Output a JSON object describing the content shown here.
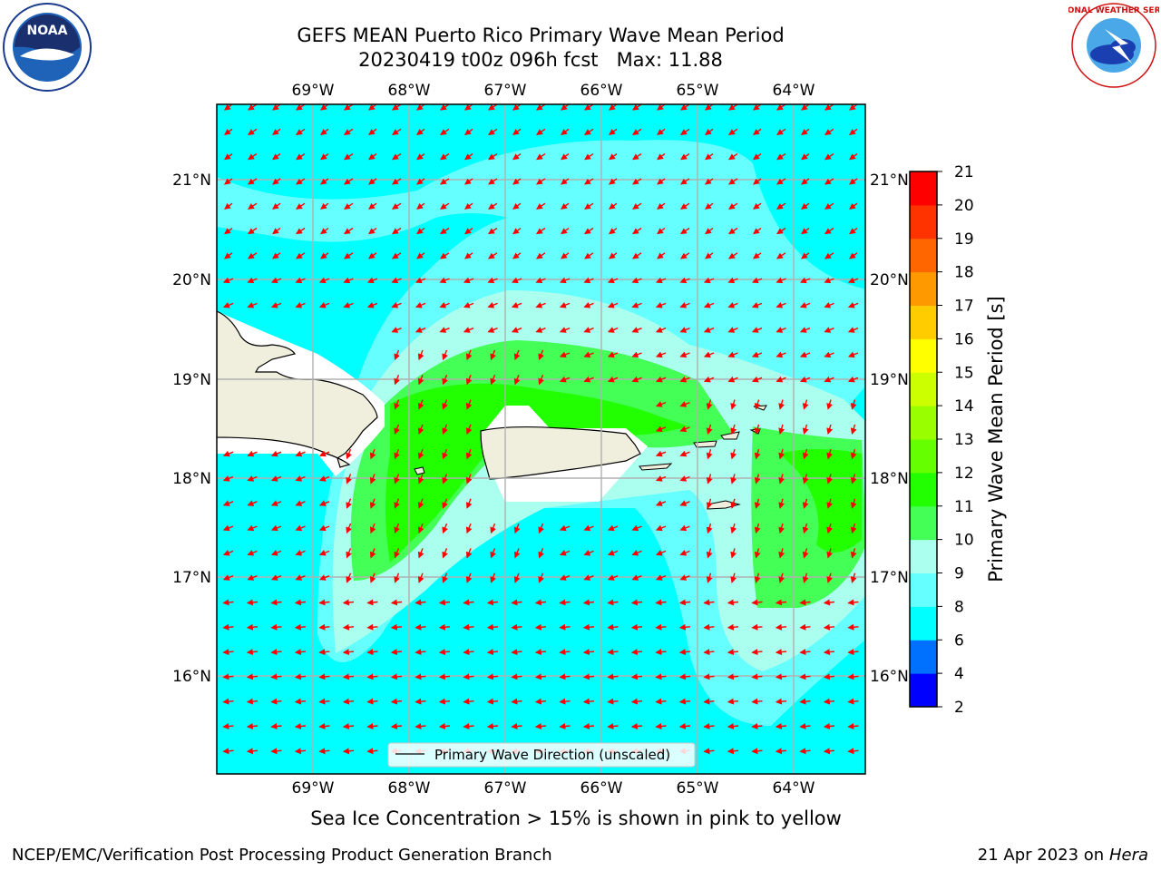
{
  "header": {
    "title_line1": "GEFS MEAN Puerto Rico Primary Wave Mean Period",
    "title_line2": "20230419 t00z 096h fcst   Max: 11.88"
  },
  "map": {
    "lon_labels": [
      "69°W",
      "68°W",
      "67°W",
      "66°W",
      "65°W",
      "64°W"
    ],
    "lat_labels": [
      "21°N",
      "20°N",
      "19°N",
      "18°N",
      "17°N",
      "16°N"
    ],
    "legend_label": "Primary Wave Direction (unscaled)",
    "arrow_color": "#ff0000",
    "land_color": "#f0eedc",
    "ocean_base_color": "#00ffff"
  },
  "colorbar": {
    "label": "Primary Wave Mean Period [s]",
    "ticks": [
      "2",
      "4",
      "6",
      "8",
      "9",
      "10",
      "11",
      "12",
      "13",
      "14",
      "15",
      "16",
      "17",
      "18",
      "19",
      "20",
      "21"
    ],
    "colors": [
      "#0000ff",
      "#0070ff",
      "#00ffff",
      "#66ffff",
      "#aaffee",
      "#44ff55",
      "#22ff00",
      "#66ff00",
      "#99ff00",
      "#ccff00",
      "#ffff00",
      "#ffcc00",
      "#ff9900",
      "#ff6600",
      "#ff3300",
      "#ff0000"
    ]
  },
  "footer": {
    "ice_note": "Sea Ice Concentration > 15% is shown in pink to yellow",
    "branch": "NCEP/EMC/Verification Post Processing Product Generation Branch",
    "date": "21 Apr 2023 on ",
    "host": "Hera"
  },
  "logos": {
    "noaa_text": "NOAA",
    "nws_text": "NATIONAL WEATHER SERVICE"
  }
}
